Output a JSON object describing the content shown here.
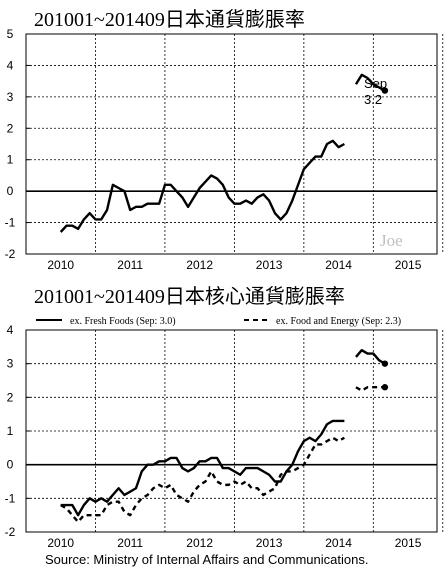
{
  "chart_data": [
    {
      "type": "line",
      "title": "201001~201409日本通貨膨脹率",
      "xlabel": "",
      "ylabel": "",
      "xlim": [
        "2009-07",
        "2015-06"
      ],
      "ylim": [
        -2,
        5
      ],
      "yticks": [
        -2,
        -1,
        0,
        1,
        2,
        3,
        4,
        5
      ],
      "xtick_labels": [
        "2010",
        "2011",
        "2012",
        "2013",
        "2014",
        "2015"
      ],
      "grid": true,
      "reference_line": 0,
      "watermark": "Joe",
      "annotation": {
        "label": "Sep",
        "value_text": "3.2"
      },
      "series": [
        {
          "color": "#000000",
          "segments": [
            {
              "start": "2010-01",
              "values": [
                -1.3,
                -1.1,
                -1.1,
                -1.2,
                -0.9,
                -0.7,
                -0.9,
                -0.9,
                -0.6,
                0.2,
                0.1,
                0.0,
                -0.6,
                -0.5,
                -0.5,
                -0.4,
                -0.4,
                -0.4,
                0.2,
                0.2,
                0.0,
                -0.2,
                -0.5,
                -0.2,
                0.1,
                0.3,
                0.5,
                0.4,
                0.2,
                -0.2,
                -0.4,
                -0.4,
                -0.3,
                -0.4,
                -0.2,
                -0.1,
                -0.3,
                -0.7,
                -0.9,
                -0.7,
                -0.3,
                0.2,
                0.7,
                0.9,
                1.1,
                1.1,
                1.5,
                1.6,
                1.4,
                1.5
              ]
            },
            {
              "start": "2014-04",
              "values": [
                3.4,
                3.7,
                3.6,
                3.4,
                3.3,
                3.2
              ],
              "end_marker": true
            }
          ]
        }
      ]
    },
    {
      "type": "line",
      "title": "201001~201409日本核心通貨膨脹率",
      "xlabel": "",
      "ylabel": "",
      "xlim": [
        "2009-07",
        "2015-06"
      ],
      "ylim": [
        -2,
        4
      ],
      "yticks": [
        -2,
        -1,
        0,
        1,
        2,
        3,
        4
      ],
      "xtick_labels": [
        "2010",
        "2011",
        "2012",
        "2013",
        "2014",
        "2015"
      ],
      "grid": true,
      "reference_line": 0,
      "legend_position": "top",
      "series": [
        {
          "name": "ex. Fresh Foods (Sep: 3.0)",
          "color": "#000000",
          "dash": false,
          "segments": [
            {
              "start": "2010-01",
              "values": [
                -1.2,
                -1.2,
                -1.2,
                -1.5,
                -1.2,
                -1.0,
                -1.1,
                -1.0,
                -1.1,
                -0.9,
                -0.7,
                -0.9,
                -0.8,
                -0.7,
                -0.2,
                0.0,
                0.0,
                0.1,
                0.1,
                0.2,
                0.2,
                -0.1,
                -0.2,
                -0.1,
                0.1,
                0.1,
                0.2,
                0.2,
                -0.1,
                -0.1,
                -0.2,
                -0.3,
                -0.1,
                -0.1,
                -0.1,
                -0.2,
                -0.3,
                -0.5,
                -0.5,
                -0.2,
                0.0,
                0.4,
                0.7,
                0.8,
                0.7,
                0.9,
                1.2,
                1.3,
                1.3,
                1.3
              ]
            },
            {
              "start": "2014-04",
              "values": [
                3.2,
                3.4,
                3.3,
                3.3,
                3.1,
                3.0
              ],
              "end_marker": true
            }
          ]
        },
        {
          "name": "ex. Food and Energy (Sep: 2.3)",
          "color": "#000000",
          "dash": true,
          "segments": [
            {
              "start": "2010-01",
              "values": [
                -1.2,
                -1.3,
                -1.5,
                -1.7,
                -1.5,
                -1.5,
                -1.5,
                -1.5,
                -1.2,
                -1.1,
                -1.1,
                -1.4,
                -1.5,
                -1.2,
                -1.0,
                -0.9,
                -0.7,
                -0.6,
                -0.7,
                -0.6,
                -0.9,
                -1.0,
                -1.1,
                -0.8,
                -0.6,
                -0.5,
                -0.2,
                -0.5,
                -0.6,
                -0.6,
                -0.5,
                -0.6,
                -0.5,
                -0.7,
                -0.7,
                -0.9,
                -0.8,
                -0.7,
                -0.3,
                -0.2,
                -0.2,
                -0.1,
                0.0,
                0.3,
                0.6,
                0.6,
                0.7,
                0.8,
                0.7,
                0.8
              ]
            },
            {
              "start": "2014-04",
              "values": [
                2.3,
                2.2,
                2.3,
                2.3,
                2.3,
                2.3
              ],
              "end_marker": true
            }
          ]
        }
      ]
    }
  ],
  "footer": {
    "source": "Source:  Ministry of Internal Affairs and Communications."
  }
}
